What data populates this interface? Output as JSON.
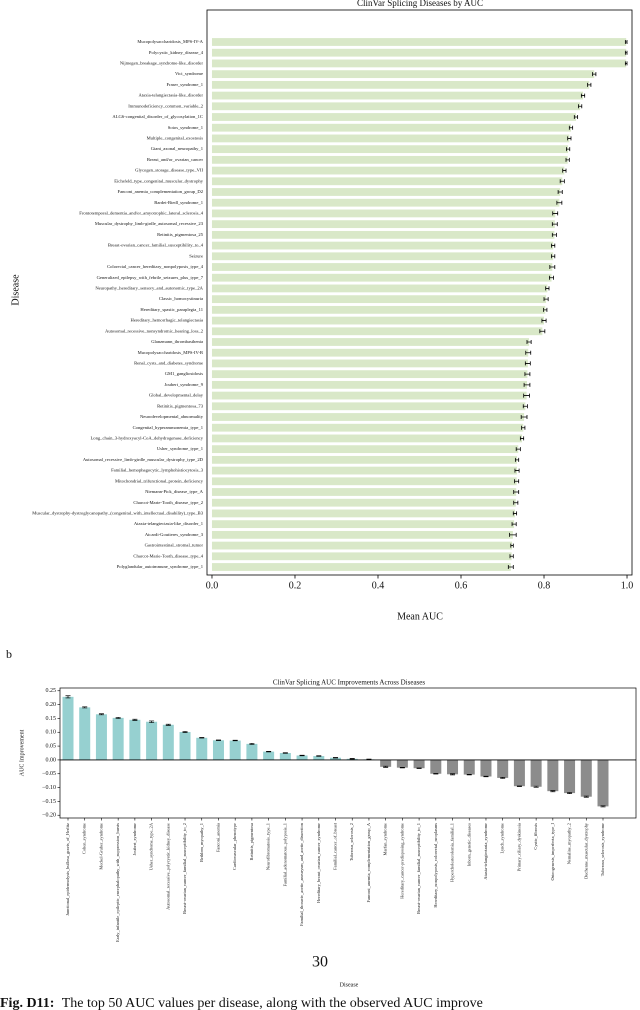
{
  "chart_data": [
    {
      "type": "barh",
      "title": "ClinVar Splicing Diseases by AUC",
      "xlabel": "Mean AUC",
      "ylabel": "Disease",
      "color": "#d9e8c8",
      "categories": [
        "Mucopolysaccharidosis_MPS-IV-A",
        "Polycystic_kidney_disease_4",
        "Nijmegen_breakage_syndrome-like_disorder",
        "Vici_syndrome",
        "Fraser_syndrome_1",
        "Ataxia-telangiectasia-like_disorder",
        "Immunodeficiency_common_variable_2",
        "ALG6-congenital_disorder_of_glycosylation_1C",
        "Sotos_syndrome_1",
        "Multiple_congenital_exostosis",
        "Giant_axonal_neuropathy_1",
        "Breast_and/or_ovarian_cancer",
        "Glycogen_storage_disease_type_VII",
        "Eichsfeld_type_congenital_muscular_dystrophy",
        "Fanconi_anemia_complementation_group_D2",
        "Bardet-Biedl_syndrome_1",
        "Frontotemporal_dementia_and/or_amyotrophic_lateral_sclerosis_4",
        "Muscular_dystrophy_limb-girdle_autosomal_recessive_23",
        "Retinitis_pigmentosa_25",
        "Breast-ovarian_cancer_familial_susceptibility_to_4",
        "Seizure",
        "Colorectal_cancer_hereditary_nonpolyposis_type_4",
        "Generalized_epilepsy_with_febrile_seizures_plus_type_7",
        "Neuropathy_hereditary_sensory_and_autonomic_type_2A",
        "Classic_homocystinuria",
        "Hereditary_spastic_paraplegia_11",
        "Hereditary_hemorrhagic_telangiectasia",
        "Autosomal_recessive_nonsyndromic_hearing_loss_2",
        "Glanzmann_thrombasthenia",
        "Mucopolysaccharidosis_MPS-IV-B",
        "Renal_cysts_and_diabetes_syndrome",
        "GM1_gangliosidosis",
        "Joubert_syndrome_9",
        "Global_developmental_delay",
        "Retinitis_pigmentosa_73",
        "Neurodevelopmental_abnormality",
        "Congenital_hyperammonemia_type_1",
        "Long_chain_3-hydroxyacyl-CoA_dehydrogenase_deficiency",
        "Usher_syndrome_type_1",
        "Autosomal_recessive_limb-girdle_muscular_dystrophy_type_2D",
        "Familial_hemophagocytic_lymphohistiocytosis_3",
        "Mitochondrial_trifunctional_protein_deficiency",
        "Niemann-Pick_disease_type_A",
        "Charcot-Marie-Tooth_disease_type_2",
        "Muscular_dystrophy-dystroglycanopathy_(congenital_with_intellectual_disability)_type_B3",
        "Ataxia-telangiectasia-like_disorder_1",
        "Aicardi-Goutieres_syndrome_3",
        "Gastrointestinal_stromal_tumor",
        "Charcot-Marie-Tooth_disease_type_4",
        "Polyglandular_autoimmune_syndrome_type_1"
      ],
      "values": [
        0.998,
        0.998,
        0.998,
        0.921,
        0.909,
        0.894,
        0.887,
        0.877,
        0.865,
        0.861,
        0.858,
        0.857,
        0.849,
        0.844,
        0.839,
        0.837,
        0.827,
        0.826,
        0.825,
        0.822,
        0.822,
        0.82,
        0.818,
        0.808,
        0.805,
        0.803,
        0.8,
        0.796,
        0.764,
        0.762,
        0.761,
        0.76,
        0.759,
        0.758,
        0.755,
        0.752,
        0.75,
        0.747,
        0.738,
        0.735,
        0.735,
        0.734,
        0.733,
        0.732,
        0.73,
        0.728,
        0.725,
        0.723,
        0.722,
        0.72
      ],
      "errors": [
        0.002,
        0.002,
        0.002,
        0.004,
        0.004,
        0.004,
        0.004,
        0.004,
        0.004,
        0.004,
        0.004,
        0.004,
        0.004,
        0.005,
        0.005,
        0.006,
        0.006,
        0.006,
        0.005,
        0.004,
        0.004,
        0.006,
        0.005,
        0.004,
        0.005,
        0.004,
        0.005,
        0.006,
        0.005,
        0.006,
        0.006,
        0.006,
        0.007,
        0.007,
        0.005,
        0.007,
        0.004,
        0.004,
        0.005,
        0.004,
        0.005,
        0.005,
        0.006,
        0.005,
        0.004,
        0.005,
        0.008,
        0.003,
        0.004,
        0.006
      ],
      "xlim": [
        -0.012,
        1.012
      ],
      "xticks": [
        {
          "value": 0,
          "label": "0.0"
        },
        0.2,
        0.4,
        0.6,
        0.8,
        {
          "value": 1,
          "label": "1.0"
        }
      ]
    },
    {
      "type": "bar",
      "panel": "b",
      "title": "ClinVar Splicing AUC Improvements Across Diseases",
      "xlabel": "Disease",
      "ylabel": "AUC Improvement",
      "positive_color": "#96d0d0",
      "negative_color": "#8c8c8c",
      "categories": [
        "Junctional_epidermolysis_bullosa_gravis_of_Herlitz",
        "Cohen_syndrome",
        "Meckel-Gruber_syndrome",
        "Early_infantile_epileptic_encephalopathy_with_suppression_bursts",
        "Joubert_syndrome",
        "Usher_syndrome_type_2A",
        "Autosomal_recessive_polycystic_kidney_disease",
        "Breast-ovarian_cancer_familial_susceptibility_to_2",
        "Bethlem_myopathy_1",
        "Fanconi_anemia",
        "Cardiovascular_phenotype",
        "Retinitis_pigmentosa",
        "Neurofibromatosis_type_1",
        "Familial_adenomatous_polyposis_1",
        "Familial_thoracic_aortic_aneurysm_and_aortic_dissection",
        "Hereditary_breast_ovarian_cancer_syndrome",
        "Familial_cancer_of_breast",
        "Tuberous_sclerosis_2",
        "Fanconi_anemia_complementation_group_A",
        "Marfan_syndrome",
        "Hereditary_cancer-predisposing_syndrome",
        "Breast-ovarian_cancer_familial_susceptibility_to_1",
        "Hereditary_nonpolyposis_colorectal_neoplasms",
        "Hypercholesterolemia_familial_1",
        "Inborn_genetic_diseases",
        "Ataxia-telangiectasia_syndrome",
        "Lynch_syndrome",
        "Primary_ciliary_dyskinesia",
        "Cystic_fibrosis",
        "Osteogenesis_imperfecta_type_I",
        "Nemaline_myopathy_2",
        "Duchenne_muscular_dystrophy",
        "Tuberous_sclerosis_syndrome"
      ],
      "values": [
        0.228,
        0.19,
        0.165,
        0.152,
        0.145,
        0.138,
        0.127,
        0.101,
        0.08,
        0.071,
        0.07,
        0.058,
        0.03,
        0.025,
        0.016,
        0.014,
        0.008,
        0.004,
        0.002,
        -0.025,
        -0.028,
        -0.03,
        -0.05,
        -0.052,
        -0.053,
        -0.06,
        -0.065,
        -0.095,
        -0.097,
        -0.113,
        -0.12,
        -0.133,
        -0.168
      ],
      "errors": [
        0.004,
        0.002,
        0.002,
        0.002,
        0.002,
        0.003,
        0.002,
        0.002,
        0.001,
        0.001,
        0.001,
        0.002,
        0.001,
        0.001,
        0.001,
        0.001,
        0.001,
        0.001,
        0.001,
        0.002,
        0.001,
        0.001,
        0.001,
        0.002,
        0.001,
        0.001,
        0.002,
        0.001,
        0.002,
        0.002,
        0.002,
        0.002,
        0.002
      ],
      "ylim": [
        -0.21,
        0.26
      ],
      "yticks": [
        {
          "value": -0.2,
          "label": "−0.20"
        },
        {
          "value": -0.15,
          "label": "−0.15"
        },
        {
          "value": -0.1,
          "label": "−0.10"
        },
        {
          "value": -0.05,
          "label": "−0.05"
        },
        {
          "value": 0,
          "label": "0.00"
        },
        {
          "value": 0.05,
          "label": "0.05"
        },
        {
          "value": 0.1,
          "label": "0.10"
        },
        {
          "value": 0.15,
          "label": "0.15"
        },
        {
          "value": 0.2,
          "label": "0.20"
        },
        {
          "value": 0.25,
          "label": "0.25"
        }
      ]
    }
  ],
  "page_number": "30",
  "caption": {
    "label": "Fig. D11:",
    "text": "The top 50 AUC values per disease, along with the observed AUC improve"
  }
}
